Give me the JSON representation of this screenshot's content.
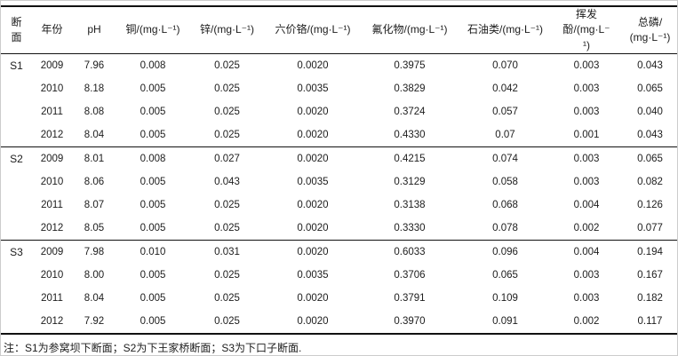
{
  "table": {
    "columns": [
      {
        "label": "断\n面"
      },
      {
        "label": "年份"
      },
      {
        "label": "pH"
      },
      {
        "label": "铜/(mg·L⁻¹)"
      },
      {
        "label": "锌/(mg·L⁻¹)"
      },
      {
        "label": "六价铬/(mg·L⁻¹)"
      },
      {
        "label": "氟化物/(mg·L⁻¹)"
      },
      {
        "label": "石油类/(mg·L⁻¹)"
      },
      {
        "label": "挥发酚/(mg·L⁻\n¹)"
      },
      {
        "label": "总磷/\n(mg·L⁻¹)"
      }
    ],
    "sections": [
      {
        "id": "S1",
        "rows": [
          [
            "2009",
            "7.96",
            "0.008",
            "0.025",
            "0.0020",
            "0.3975",
            "0.070",
            "0.003",
            "0.043"
          ],
          [
            "2010",
            "8.18",
            "0.005",
            "0.025",
            "0.0035",
            "0.3829",
            "0.042",
            "0.003",
            "0.065"
          ],
          [
            "2011",
            "8.08",
            "0.005",
            "0.025",
            "0.0020",
            "0.3724",
            "0.057",
            "0.003",
            "0.040"
          ],
          [
            "2012",
            "8.04",
            "0.005",
            "0.025",
            "0.0020",
            "0.4330",
            "0.07",
            "0.001",
            "0.043"
          ]
        ]
      },
      {
        "id": "S2",
        "rows": [
          [
            "2009",
            "8.01",
            "0.008",
            "0.027",
            "0.0020",
            "0.4215",
            "0.074",
            "0.003",
            "0.065"
          ],
          [
            "2010",
            "8.06",
            "0.005",
            "0.043",
            "0.0035",
            "0.3129",
            "0.058",
            "0.003",
            "0.082"
          ],
          [
            "2011",
            "8.07",
            "0.005",
            "0.025",
            "0.0020",
            "0.3138",
            "0.068",
            "0.004",
            "0.126"
          ],
          [
            "2012",
            "8.05",
            "0.005",
            "0.025",
            "0.0020",
            "0.3330",
            "0.078",
            "0.002",
            "0.077"
          ]
        ]
      },
      {
        "id": "S3",
        "rows": [
          [
            "2009",
            "7.98",
            "0.010",
            "0.031",
            "0.0020",
            "0.6033",
            "0.096",
            "0.004",
            "0.194"
          ],
          [
            "2010",
            "8.00",
            "0.005",
            "0.025",
            "0.0035",
            "0.3706",
            "0.065",
            "0.003",
            "0.167"
          ],
          [
            "2011",
            "8.04",
            "0.005",
            "0.025",
            "0.0020",
            "0.3791",
            "0.109",
            "0.003",
            "0.182"
          ],
          [
            "2012",
            "7.92",
            "0.005",
            "0.025",
            "0.0020",
            "0.3970",
            "0.091",
            "0.002",
            "0.117"
          ]
        ]
      }
    ]
  },
  "note": "注：S1为参窝坝下断面；S2为下王家桥断面；S3为下口子断面."
}
